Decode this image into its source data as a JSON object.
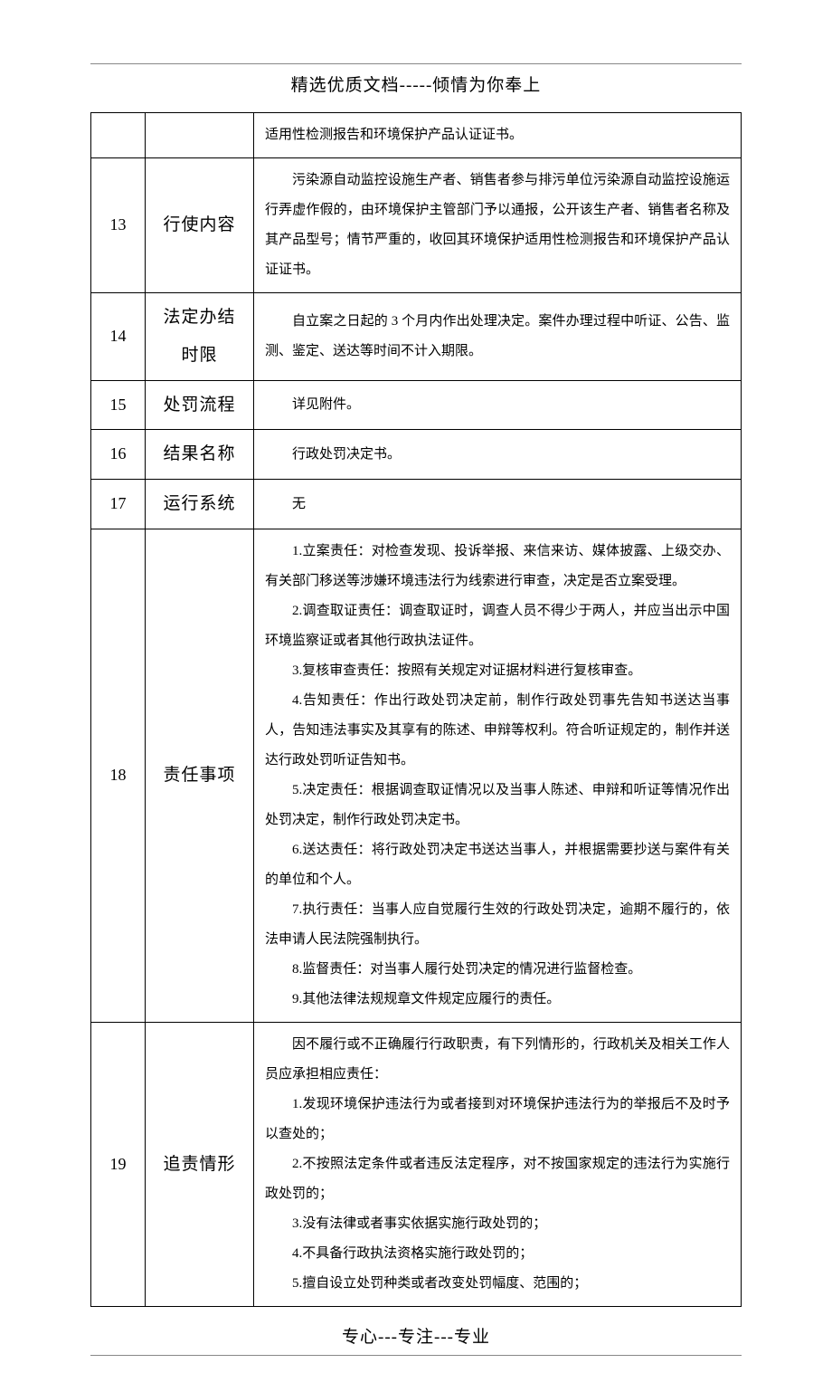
{
  "header": "精选优质文档-----倾情为你奉上",
  "footer": "专心---专注---专业",
  "rows": [
    {
      "num": "",
      "label": "",
      "content_lines": [
        "适用性检测报告和环境保护产品认证证书。"
      ],
      "isFragment": true
    },
    {
      "num": "13",
      "label": "行使内容",
      "content_lines": [
        "污染源自动监控设施生产者、销售者参与排污单位污染源自动监控设施运行弄虚作假的，由环境保护主管部门予以通报，公开该生产者、销售者名称及其产品型号；情节严重的，收回其环境保护适用性检测报告和环境保护产品认证证书。"
      ]
    },
    {
      "num": "14",
      "label": "法定办结时限",
      "content_lines": [
        "自立案之日起的 3 个月内作出处理决定。案件办理过程中听证、公告、监测、鉴定、送达等时间不计入期限。"
      ]
    },
    {
      "num": "15",
      "label": "处罚流程",
      "content_lines": [
        "详见附件。"
      ]
    },
    {
      "num": "16",
      "label": "结果名称",
      "content_lines": [
        "行政处罚决定书。"
      ]
    },
    {
      "num": "17",
      "label": "运行系统",
      "content_lines": [
        "无"
      ]
    },
    {
      "num": "18",
      "label": "责任事项",
      "content_lines": [
        "1.立案责任：对检查发现、投诉举报、来信来访、媒体披露、上级交办、有关部门移送等涉嫌环境违法行为线索进行审查，决定是否立案受理。",
        "2.调查取证责任：调查取证时，调查人员不得少于两人，并应当出示中国环境监察证或者其他行政执法证件。",
        "3.复核审查责任：按照有关规定对证据材料进行复核审查。",
        "4.告知责任：作出行政处罚决定前，制作行政处罚事先告知书送达当事人，告知违法事实及其享有的陈述、申辩等权利。符合听证规定的，制作并送达行政处罚听证告知书。",
        "5.决定责任：根据调查取证情况以及当事人陈述、申辩和听证等情况作出处罚决定，制作行政处罚决定书。",
        "6.送达责任：将行政处罚决定书送达当事人，并根据需要抄送与案件有关的单位和个人。",
        "7.执行责任：当事人应自觉履行生效的行政处罚决定，逾期不履行的，依法申请人民法院强制执行。",
        "8.监督责任：对当事人履行处罚决定的情况进行监督检查。",
        "9.其他法律法规规章文件规定应履行的责任。"
      ]
    },
    {
      "num": "19",
      "label": "追责情形",
      "content_lines": [
        "因不履行或不正确履行行政职责，有下列情形的，行政机关及相关工作人员应承担相应责任：",
        "1.发现环境保护违法行为或者接到对环境保护违法行为的举报后不及时予以查处的；",
        "2.不按照法定条件或者违反法定程序，对不按国家规定的违法行为实施行政处罚的；",
        "3.没有法律或者事实依据实施行政处罚的；",
        "4.不具备行政执法资格实施行政处罚的；",
        "5.擅自设立处罚种类或者改变处罚幅度、范围的；"
      ]
    }
  ]
}
